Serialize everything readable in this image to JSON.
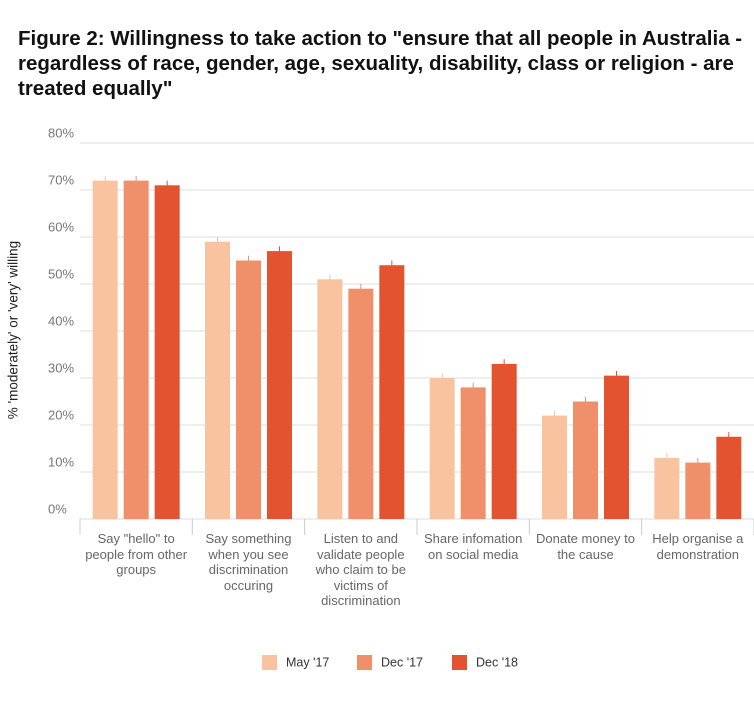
{
  "chart_data": {
    "type": "bar",
    "title": "Figure 2: Willingness to take action to \"ensure that all people in Australia - regardless of race, gender, age, sexuality, disability, class or religion - are treated equally\"",
    "y_label": "% 'moderately' or 'very' willing",
    "categories": [
      "Say \"hello\" to people from other groups",
      "Say something when you see discrimination occuring",
      "Listen to and validate people who claim to be victims of discrimination",
      "Share infomation on social media",
      "Donate money to the cause",
      "Help organise a demonstration"
    ],
    "series": [
      {
        "name": "May '17",
        "color": "#f9c3a0",
        "values": [
          72,
          59,
          51,
          30,
          22,
          13
        ],
        "errors": [
          1,
          1,
          1,
          1,
          1,
          1
        ]
      },
      {
        "name": "Dec '17",
        "color": "#f0906a",
        "values": [
          72,
          55,
          49,
          28,
          25,
          12
        ],
        "errors": [
          1,
          1,
          1,
          1,
          1,
          1
        ]
      },
      {
        "name": "Dec '18",
        "color": "#e4532f",
        "values": [
          71,
          57,
          54,
          33,
          30.5,
          17.5
        ],
        "errors": [
          1,
          1,
          1,
          1,
          1,
          1
        ]
      }
    ],
    "ylim": [
      0,
      80
    ],
    "yticks": [
      {
        "value": 0,
        "label": "0%"
      },
      {
        "value": 10,
        "label": "10%"
      },
      {
        "value": 20,
        "label": "20%"
      },
      {
        "value": 30,
        "label": "30%"
      },
      {
        "value": 40,
        "label": "40%"
      },
      {
        "value": 50,
        "label": "50%"
      },
      {
        "value": 60,
        "label": "60%"
      },
      {
        "value": 70,
        "label": "70%"
      },
      {
        "value": 80,
        "label": "80%"
      }
    ],
    "grid": true
  }
}
